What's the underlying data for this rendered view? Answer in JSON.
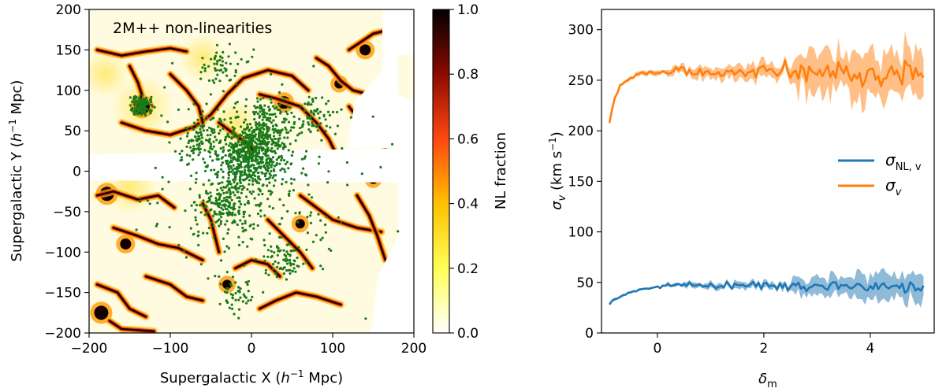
{
  "chart_data": [
    {
      "type": "heatmap",
      "annotation": "2M++ non-linearities",
      "xlabel": "Supergalactic X (h⁻¹ Mpc)",
      "ylabel": "Supergalactic Y (h⁻¹ Mpc)",
      "xlim": [
        -200,
        200
      ],
      "ylim": [
        -200,
        200
      ],
      "xticks": [
        "−200",
        "−100",
        "0",
        "100",
        "200"
      ],
      "yticks": [
        "200",
        "150",
        "100",
        "50",
        "0",
        "−50",
        "−100",
        "−150",
        "−200"
      ],
      "colorbar": {
        "label": "NL fraction",
        "range": [
          0.0,
          1.0
        ],
        "ticks": [
          "1.0",
          "0.8",
          "0.6",
          "0.4",
          "0.2",
          "0.0"
        ],
        "colormap": "afmhot_r",
        "colors": [
          "#ffffff",
          "#ffff33",
          "#ffb000",
          "#e03010",
          "#7a0000",
          "#000000"
        ]
      },
      "points_color": "#1a7a1a",
      "filaments": [
        [
          [
            -190,
            150
          ],
          [
            -160,
            143
          ],
          [
            -130,
            148
          ],
          [
            -100,
            152
          ],
          [
            -80,
            148
          ]
        ],
        [
          [
            -150,
            130
          ],
          [
            -140,
            110
          ],
          [
            -135,
            95
          ],
          [
            -140,
            80
          ]
        ],
        [
          [
            -160,
            60
          ],
          [
            -130,
            50
          ],
          [
            -100,
            45
          ],
          [
            -70,
            55
          ],
          [
            -50,
            70
          ],
          [
            -30,
            95
          ],
          [
            -10,
            115
          ],
          [
            20,
            125
          ],
          [
            50,
            118
          ],
          [
            70,
            100
          ]
        ],
        [
          [
            -100,
            120
          ],
          [
            -80,
            100
          ],
          [
            -65,
            80
          ],
          [
            -60,
            60
          ]
        ],
        [
          [
            10,
            95
          ],
          [
            30,
            90
          ],
          [
            60,
            80
          ],
          [
            80,
            60
          ],
          [
            95,
            40
          ],
          [
            105,
            20
          ]
        ],
        [
          [
            80,
            140
          ],
          [
            95,
            130
          ],
          [
            110,
            112
          ],
          [
            125,
            100
          ],
          [
            145,
            95
          ]
        ],
        [
          [
            120,
            80
          ],
          [
            135,
            60
          ],
          [
            150,
            40
          ],
          [
            165,
            30
          ]
        ],
        [
          [
            -40,
            60
          ],
          [
            -20,
            45
          ],
          [
            0,
            30
          ],
          [
            10,
            10
          ]
        ],
        [
          [
            -190,
            -30
          ],
          [
            -170,
            -25
          ],
          [
            -140,
            -35
          ],
          [
            -115,
            -30
          ],
          [
            -95,
            -45
          ]
        ],
        [
          [
            -170,
            -70
          ],
          [
            -140,
            -80
          ],
          [
            -115,
            -90
          ],
          [
            -90,
            -95
          ],
          [
            -60,
            -110
          ]
        ],
        [
          [
            -130,
            -130
          ],
          [
            -100,
            -140
          ],
          [
            -80,
            -155
          ],
          [
            -60,
            -160
          ]
        ],
        [
          [
            -60,
            -40
          ],
          [
            -50,
            -60
          ],
          [
            -45,
            -80
          ],
          [
            -40,
            -100
          ]
        ],
        [
          [
            20,
            -60
          ],
          [
            40,
            -80
          ],
          [
            60,
            -100
          ],
          [
            75,
            -120
          ]
        ],
        [
          [
            60,
            -30
          ],
          [
            80,
            -45
          ],
          [
            100,
            -60
          ],
          [
            130,
            -70
          ],
          [
            160,
            -75
          ]
        ],
        [
          [
            10,
            -170
          ],
          [
            30,
            -160
          ],
          [
            55,
            -150
          ],
          [
            80,
            -155
          ],
          [
            110,
            -165
          ]
        ],
        [
          [
            -190,
            -140
          ],
          [
            -165,
            -150
          ],
          [
            -150,
            -170
          ],
          [
            -130,
            -180
          ]
        ],
        [
          [
            130,
            -30
          ],
          [
            145,
            -55
          ],
          [
            155,
            -80
          ],
          [
            165,
            -110
          ]
        ],
        [
          [
            -20,
            -120
          ],
          [
            0,
            -110
          ],
          [
            20,
            -115
          ],
          [
            35,
            -130
          ]
        ],
        [
          [
            120,
            150
          ],
          [
            135,
            160
          ],
          [
            150,
            170
          ],
          [
            170,
            175
          ]
        ],
        [
          [
            -175,
            -185
          ],
          [
            -160,
            -195
          ],
          [
            -120,
            -198
          ]
        ]
      ],
      "blobs": [
        [
          -135,
          80,
          10
        ],
        [
          -178,
          -28,
          9
        ],
        [
          -155,
          -90,
          7
        ],
        [
          -185,
          -175,
          9
        ],
        [
          40,
          85,
          8
        ],
        [
          108,
          108,
          6
        ],
        [
          140,
          150,
          7
        ],
        [
          -30,
          -140,
          6
        ],
        [
          60,
          -65,
          6
        ],
        [
          150,
          -10,
          6
        ]
      ]
    },
    {
      "type": "line",
      "xlabel": "δm",
      "ylabel": "σv (km s⁻¹)",
      "xlim": [
        -1.05,
        5.2
      ],
      "ylim": [
        0,
        320
      ],
      "xticks": [
        "0",
        "2",
        "4"
      ],
      "yticks": [
        "0",
        "50",
        "100",
        "150",
        "200",
        "250",
        "300"
      ],
      "legend": {
        "position": "center-right"
      },
      "series": [
        {
          "name": "σNL,v",
          "legend_main": "σ",
          "legend_sub": "NL, v",
          "color": "#1f77b4",
          "plateau": 47,
          "start": 29,
          "noise": 3.5
        },
        {
          "name": "σv",
          "legend_main": "σ",
          "legend_sub": "v",
          "color": "#ff7f0e",
          "plateau": 258,
          "start": 208,
          "noise": 7
        }
      ]
    }
  ]
}
